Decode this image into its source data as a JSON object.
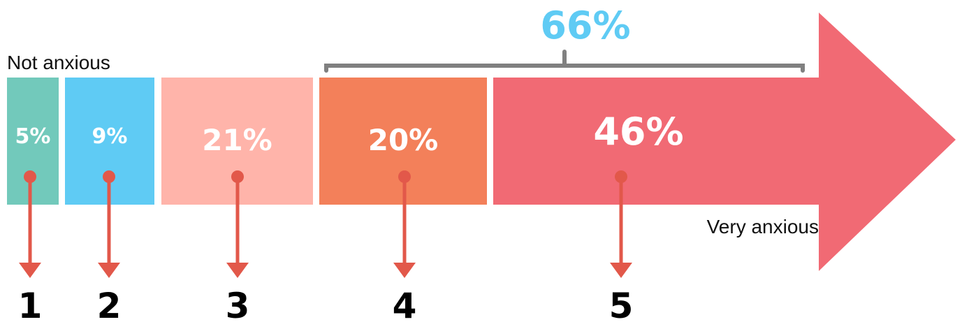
{
  "chart_data": {
    "type": "bar",
    "categories": [
      "1",
      "2",
      "3",
      "4",
      "5"
    ],
    "values": [
      5,
      9,
      21,
      20,
      46
    ],
    "value_labels": [
      "5%",
      "9%",
      "21%",
      "20%",
      "46%"
    ],
    "colors": [
      "#72c9bb",
      "#5fcbf4",
      "#ffb4aa",
      "#f3805a",
      "#f16a74"
    ],
    "arrow_color": "#e2584a",
    "low_anchor": "Not anxious",
    "high_anchor": "Very anxious",
    "bracket": {
      "spans": [
        "4",
        "5"
      ],
      "label": "66%",
      "label_color": "#5fcbf4",
      "line_color": "#808080"
    }
  }
}
